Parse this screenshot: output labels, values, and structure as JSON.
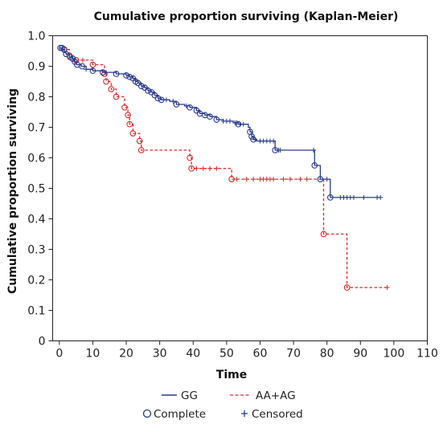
{
  "chart_data": {
    "type": "line",
    "subtype": "kaplan-meier",
    "title": "Cumulative proportion surviving (Kaplan-Meier)",
    "xlabel": "Time",
    "ylabel": "Cumulative proportion surviving",
    "xlim": [
      -2,
      110
    ],
    "ylim": [
      0,
      1.0
    ],
    "xticks": [
      0,
      10,
      20,
      30,
      40,
      50,
      60,
      70,
      80,
      90,
      100,
      110
    ],
    "xtick_labels": [
      "0",
      "10",
      "20",
      "30",
      "40",
      "50",
      "60",
      "70",
      "80",
      "90",
      "100",
      "110"
    ],
    "yticks": [
      0,
      0.1,
      0.2,
      0.3,
      0.4,
      0.5,
      0.6,
      0.7,
      0.8,
      0.9,
      1.0
    ],
    "ytick_labels": [
      "0",
      "0.1",
      "0.2",
      "0.3",
      "0.4",
      "0.5",
      "0.6",
      "0.7",
      "0.8",
      "0.9",
      "1.0"
    ],
    "grid": false,
    "legend_position": "bottom",
    "series": [
      {
        "name": "GG",
        "color": "#2a3a8f",
        "line_style": "solid",
        "steps": [
          [
            0,
            0.96
          ],
          [
            1,
            0.955
          ],
          [
            1.5,
            0.945
          ],
          [
            2,
            0.94
          ],
          [
            3,
            0.93
          ],
          [
            3.8,
            0.925
          ],
          [
            4.5,
            0.915
          ],
          [
            5.2,
            0.905
          ],
          [
            6.5,
            0.9
          ],
          [
            8,
            0.89
          ],
          [
            10,
            0.885
          ],
          [
            13,
            0.88
          ],
          [
            17,
            0.875
          ],
          [
            20,
            0.87
          ],
          [
            21,
            0.865
          ],
          [
            22,
            0.86
          ],
          [
            22.8,
            0.85
          ],
          [
            23.5,
            0.845
          ],
          [
            24.5,
            0.835
          ],
          [
            25.5,
            0.83
          ],
          [
            26.5,
            0.82
          ],
          [
            27.5,
            0.815
          ],
          [
            28.5,
            0.805
          ],
          [
            29.5,
            0.795
          ],
          [
            30.5,
            0.79
          ],
          [
            33,
            0.785
          ],
          [
            35,
            0.775
          ],
          [
            37.5,
            0.77
          ],
          [
            39,
            0.765
          ],
          [
            41,
            0.755
          ],
          [
            42,
            0.745
          ],
          [
            43.5,
            0.74
          ],
          [
            45,
            0.735
          ],
          [
            47,
            0.725
          ],
          [
            49,
            0.72
          ],
          [
            52,
            0.715
          ],
          [
            53.5,
            0.71
          ],
          [
            56.5,
            0.7
          ],
          [
            57,
            0.685
          ],
          [
            57.5,
            0.67
          ],
          [
            58,
            0.66
          ],
          [
            59,
            0.655
          ],
          [
            64.5,
            0.625
          ],
          [
            76.3,
            0.575
          ],
          [
            78,
            0.53
          ],
          [
            81,
            0.47
          ],
          [
            96,
            0.47
          ]
        ],
        "complete_x": [
          0.3,
          0.8,
          1.4,
          2,
          3.2,
          4,
          4.6,
          5.3,
          6.8,
          10,
          13,
          17,
          20,
          21,
          22,
          22.8,
          23.5,
          24.5,
          25.5,
          26.5,
          27.5,
          28.5,
          29.5,
          30.5,
          35,
          39,
          41,
          42,
          43.5,
          45,
          47,
          53.5,
          57,
          57.5,
          58,
          64.5,
          76.3,
          78,
          81
        ],
        "censored_x": [
          8,
          14,
          32,
          34,
          38,
          49,
          50,
          51,
          52.5,
          53,
          54,
          55,
          58.5,
          60,
          61,
          62,
          63,
          64,
          65.5,
          66,
          76,
          80,
          84,
          85,
          86,
          87,
          88,
          91,
          95,
          96
        ]
      },
      {
        "name": "AA+AG",
        "color": "#e02828",
        "line_style": "dashed",
        "steps": [
          [
            0,
            0.96
          ],
          [
            1.5,
            0.955
          ],
          [
            3,
            0.935
          ],
          [
            4,
            0.925
          ],
          [
            5,
            0.92
          ],
          [
            10,
            0.905
          ],
          [
            13.5,
            0.875
          ],
          [
            14,
            0.85
          ],
          [
            15.5,
            0.825
          ],
          [
            17,
            0.8
          ],
          [
            19.5,
            0.765
          ],
          [
            20.5,
            0.74
          ],
          [
            21,
            0.71
          ],
          [
            22,
            0.68
          ],
          [
            24,
            0.655
          ],
          [
            24.5,
            0.625
          ],
          [
            39,
            0.6
          ],
          [
            39.5,
            0.565
          ],
          [
            51.5,
            0.53
          ],
          [
            79,
            0.35
          ],
          [
            86,
            0.175
          ],
          [
            98,
            0.175
          ]
        ],
        "complete_x": [
          1.5,
          3,
          4,
          5,
          10,
          13.5,
          14,
          15.5,
          17,
          19.5,
          20.5,
          21,
          22,
          24,
          24.5,
          39,
          39.5,
          51.5,
          79,
          86
        ],
        "censored_x": [
          7,
          41,
          43,
          45,
          47,
          53,
          56,
          58,
          60,
          61,
          62,
          63,
          64,
          67,
          69,
          72,
          74,
          98
        ]
      }
    ],
    "legend": {
      "entries": [
        "GG",
        "AA+AG"
      ],
      "marker_labels": [
        "Complete",
        "Censored"
      ]
    }
  }
}
